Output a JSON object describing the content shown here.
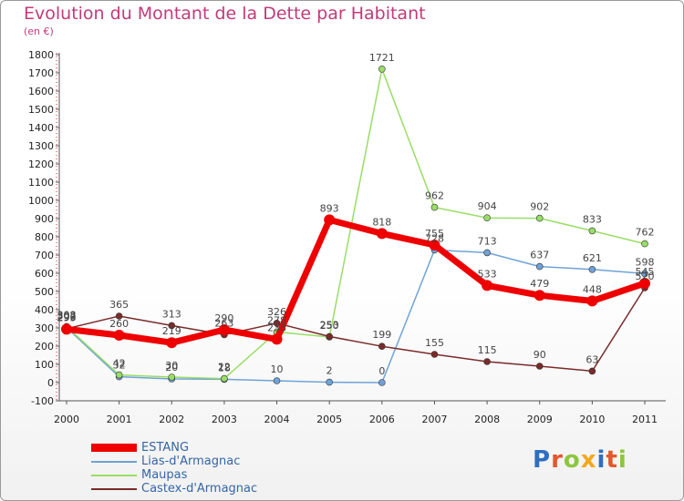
{
  "title": "Evolution du Montant de la Dette par Habitant",
  "subtitle": "(en €)",
  "logo": {
    "text": "Proxiti",
    "colors": [
      "#2f6fc0",
      "#e5572a",
      "#8cc63f",
      "#f2a81d",
      "#2f6fc0",
      "#e5572a",
      "#8cc63f"
    ]
  },
  "chart_data": {
    "type": "line",
    "x": [
      "2000",
      "2001",
      "2002",
      "2003",
      "2004",
      "2005",
      "2006",
      "2007",
      "2008",
      "2009",
      "2010",
      "2011"
    ],
    "ylim": [
      -100,
      1800
    ],
    "yticks": [
      -100,
      0,
      100,
      200,
      300,
      400,
      500,
      600,
      700,
      800,
      900,
      1000,
      1100,
      1200,
      1300,
      1400,
      1500,
      1600,
      1700,
      1800
    ],
    "grid": false,
    "legend_position": "bottom-left",
    "series": [
      {
        "name": "ESTANG",
        "color": "#ee0000",
        "width": 7,
        "marker": 6,
        "values": [
          293,
          260,
          219,
          290,
          238,
          893,
          818,
          755,
          533,
          479,
          448,
          545
        ],
        "labels": [
          "293",
          "260",
          "219",
          "290",
          "238",
          "893",
          "818",
          "755",
          "533",
          "479",
          "448",
          "545"
        ]
      },
      {
        "name": "Lias-d'Armagnac",
        "color": "#6fa3d6",
        "width": 1.5,
        "marker": 3.5,
        "values": [
          302,
          32,
          20,
          18,
          10,
          2,
          0,
          728,
          713,
          637,
          621,
          598
        ],
        "labels": [
          "302",
          "32",
          "20",
          "18",
          "10",
          "2",
          "0",
          "728",
          "713",
          "637",
          "621",
          "598"
        ]
      },
      {
        "name": "Maupas",
        "color": "#99dd66",
        "width": 1.5,
        "marker": 3.5,
        "values": [
          308,
          42,
          30,
          22,
          278,
          250,
          1721,
          962,
          904,
          902,
          833,
          762
        ],
        "labels": [
          "308",
          "42",
          "30",
          "22",
          "278",
          "250",
          "1721",
          "962",
          "904",
          "902",
          "833",
          "762"
        ]
      },
      {
        "name": "Castex-d'Armagnac",
        "color": "#7a2a2a",
        "width": 1.5,
        "marker": 3.5,
        "values": [
          296,
          365,
          313,
          263,
          326,
          253,
          199,
          155,
          115,
          90,
          63,
          520
        ],
        "labels": [
          "296",
          "365",
          "313",
          "263",
          "326",
          "253",
          "199",
          "155",
          "115",
          "90",
          "63",
          "520"
        ]
      }
    ]
  }
}
